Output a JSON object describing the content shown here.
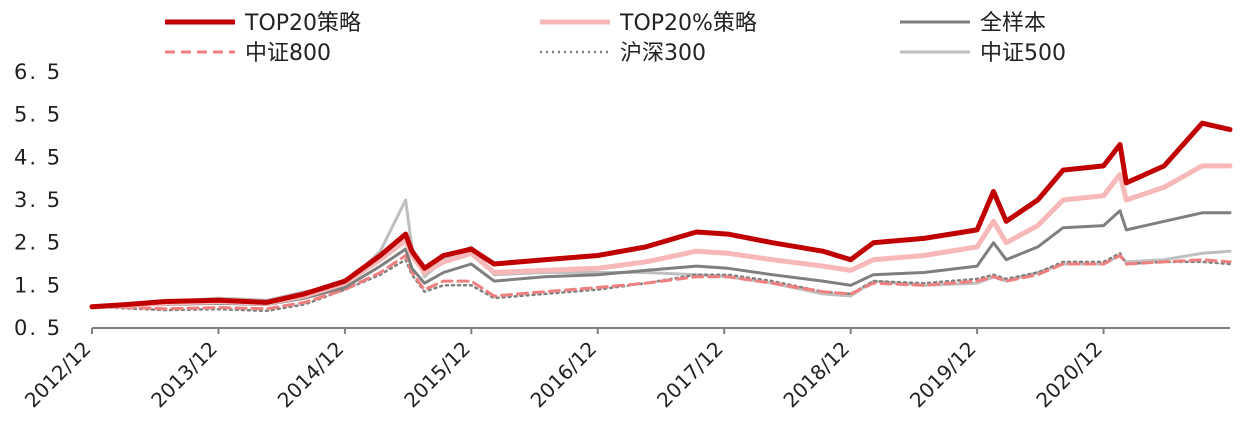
{
  "chart_data": {
    "type": "line",
    "title": "",
    "xlabel": "",
    "ylabel": "",
    "ylim": [
      0.5,
      6.5
    ],
    "y_ticks": [
      "0. 5",
      "1. 5",
      "2. 5",
      "3. 5",
      "4. 5",
      "5. 5",
      "6. 5"
    ],
    "x_ticks": [
      "2012/12",
      "2013/12",
      "2014/12",
      "2015/12",
      "2016/12",
      "2017/12",
      "2018/12",
      "2019/12",
      "2020/12"
    ],
    "x_range": [
      2012.92,
      2021.92
    ],
    "legend_position": "top",
    "grid": false,
    "series": [
      {
        "name": "TOP20策略",
        "color": "#c00000",
        "style": "solid-thick",
        "x": [
          2012.92,
          2013.2,
          2013.5,
          2013.92,
          2014.3,
          2014.6,
          2014.92,
          2015.2,
          2015.4,
          2015.45,
          2015.55,
          2015.7,
          2015.92,
          2016.1,
          2016.5,
          2016.92,
          2017.3,
          2017.7,
          2017.95,
          2018.3,
          2018.7,
          2018.92,
          2019.1,
          2019.5,
          2019.92,
          2020.05,
          2020.15,
          2020.4,
          2020.6,
          2020.92,
          2021.05,
          2021.1,
          2021.4,
          2021.7,
          2021.92
        ],
        "values": [
          1.0,
          1.05,
          1.12,
          1.15,
          1.1,
          1.3,
          1.6,
          2.2,
          2.7,
          2.3,
          1.9,
          2.2,
          2.35,
          2.0,
          2.1,
          2.2,
          2.4,
          2.75,
          2.7,
          2.5,
          2.3,
          2.1,
          2.5,
          2.6,
          2.8,
          3.7,
          3.0,
          3.5,
          4.2,
          4.3,
          4.8,
          3.9,
          4.3,
          5.3,
          5.15
        ]
      },
      {
        "name": "TOP20%策略",
        "color": "#f6b8b8",
        "style": "solid-thick",
        "x": [
          2012.92,
          2013.2,
          2013.5,
          2013.92,
          2014.3,
          2014.6,
          2014.92,
          2015.2,
          2015.4,
          2015.45,
          2015.55,
          2015.7,
          2015.92,
          2016.1,
          2016.5,
          2016.92,
          2017.3,
          2017.7,
          2017.95,
          2018.3,
          2018.7,
          2018.92,
          2019.1,
          2019.5,
          2019.92,
          2020.05,
          2020.15,
          2020.4,
          2020.6,
          2020.92,
          2021.05,
          2021.1,
          2021.4,
          2021.7,
          2021.92
        ],
        "values": [
          1.0,
          1.03,
          1.08,
          1.12,
          1.08,
          1.25,
          1.55,
          2.1,
          2.55,
          2.2,
          1.8,
          2.05,
          2.25,
          1.8,
          1.85,
          1.9,
          2.05,
          2.3,
          2.25,
          2.1,
          1.95,
          1.85,
          2.1,
          2.2,
          2.4,
          3.0,
          2.5,
          2.9,
          3.5,
          3.6,
          4.1,
          3.5,
          3.8,
          4.3,
          4.3
        ]
      },
      {
        "name": "全样本",
        "color": "#7f7f7f",
        "style": "solid",
        "x": [
          2012.92,
          2013.2,
          2013.5,
          2013.92,
          2014.3,
          2014.6,
          2014.92,
          2015.2,
          2015.4,
          2015.45,
          2015.55,
          2015.7,
          2015.92,
          2016.1,
          2016.5,
          2016.92,
          2017.3,
          2017.7,
          2017.95,
          2018.3,
          2018.7,
          2018.92,
          2019.1,
          2019.5,
          2019.92,
          2020.05,
          2020.15,
          2020.4,
          2020.6,
          2020.92,
          2021.05,
          2021.1,
          2021.4,
          2021.7,
          2021.92
        ],
        "values": [
          1.0,
          1.02,
          1.05,
          1.08,
          1.05,
          1.2,
          1.45,
          1.95,
          2.35,
          1.9,
          1.55,
          1.8,
          2.0,
          1.6,
          1.7,
          1.75,
          1.85,
          1.95,
          1.9,
          1.75,
          1.6,
          1.5,
          1.75,
          1.8,
          1.95,
          2.5,
          2.1,
          2.4,
          2.85,
          2.9,
          3.25,
          2.8,
          3.0,
          3.2,
          3.2
        ]
      },
      {
        "name": "中证800",
        "color": "#f08080",
        "style": "dashed",
        "x": [
          2012.92,
          2013.2,
          2013.5,
          2013.92,
          2014.3,
          2014.6,
          2014.92,
          2015.2,
          2015.4,
          2015.45,
          2015.55,
          2015.7,
          2015.92,
          2016.1,
          2016.5,
          2016.92,
          2017.3,
          2017.7,
          2017.95,
          2018.3,
          2018.7,
          2018.92,
          2019.1,
          2019.5,
          2019.92,
          2020.05,
          2020.15,
          2020.4,
          2020.6,
          2020.92,
          2021.05,
          2021.1,
          2021.4,
          2021.7,
          2021.92
        ],
        "values": [
          1.0,
          0.98,
          0.95,
          0.98,
          0.95,
          1.1,
          1.4,
          1.8,
          2.2,
          1.8,
          1.4,
          1.6,
          1.6,
          1.25,
          1.35,
          1.45,
          1.55,
          1.7,
          1.7,
          1.55,
          1.35,
          1.3,
          1.55,
          1.5,
          1.6,
          1.7,
          1.6,
          1.75,
          2.0,
          2.0,
          2.2,
          2.0,
          2.05,
          2.1,
          2.05
        ]
      },
      {
        "name": "沪深300",
        "color": "#808080",
        "style": "dotted",
        "x": [
          2012.92,
          2013.2,
          2013.5,
          2013.92,
          2014.3,
          2014.6,
          2014.92,
          2015.2,
          2015.4,
          2015.45,
          2015.55,
          2015.7,
          2015.92,
          2016.1,
          2016.5,
          2016.92,
          2017.3,
          2017.7,
          2017.95,
          2018.3,
          2018.7,
          2018.92,
          2019.1,
          2019.5,
          2019.92,
          2020.05,
          2020.15,
          2020.4,
          2020.6,
          2020.92,
          2021.05,
          2021.1,
          2021.4,
          2021.7,
          2021.92
        ],
        "values": [
          1.0,
          0.96,
          0.92,
          0.94,
          0.9,
          1.05,
          1.4,
          1.75,
          2.1,
          1.75,
          1.35,
          1.5,
          1.5,
          1.2,
          1.3,
          1.4,
          1.55,
          1.75,
          1.75,
          1.6,
          1.35,
          1.3,
          1.6,
          1.55,
          1.65,
          1.75,
          1.65,
          1.8,
          2.05,
          2.05,
          2.25,
          2.0,
          2.05,
          2.05,
          2.0
        ]
      },
      {
        "name": "中证500",
        "color": "#bfbfbf",
        "style": "solid",
        "x": [
          2012.92,
          2013.2,
          2013.5,
          2013.92,
          2014.3,
          2014.6,
          2014.92,
          2015.2,
          2015.4,
          2015.45,
          2015.55,
          2015.7,
          2015.92,
          2016.1,
          2016.5,
          2016.92,
          2017.3,
          2017.7,
          2017.95,
          2018.3,
          2018.7,
          2018.92,
          2019.1,
          2019.5,
          2019.92,
          2020.05,
          2020.15,
          2020.4,
          2020.6,
          2020.92,
          2021.05,
          2021.1,
          2021.4,
          2021.7,
          2021.92
        ],
        "values": [
          1.0,
          1.05,
          1.1,
          1.2,
          1.15,
          1.35,
          1.5,
          2.3,
          3.5,
          2.4,
          1.7,
          2.1,
          2.4,
          1.75,
          1.8,
          1.8,
          1.8,
          1.75,
          1.7,
          1.55,
          1.3,
          1.25,
          1.6,
          1.5,
          1.55,
          1.7,
          1.6,
          1.8,
          2.0,
          2.0,
          2.2,
          2.05,
          2.1,
          2.25,
          2.3
        ]
      }
    ]
  }
}
